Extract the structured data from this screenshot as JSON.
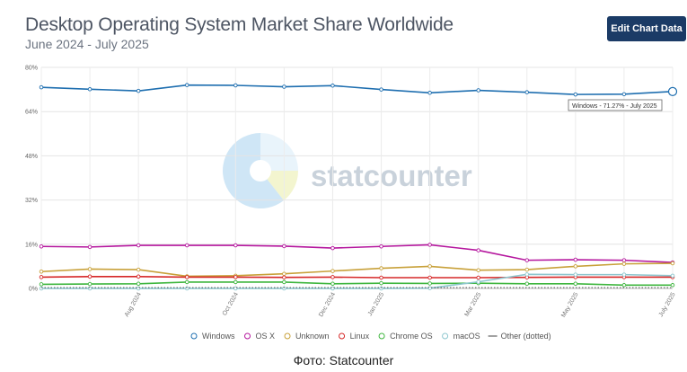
{
  "header": {
    "title": "Desktop Operating System Market Share Worldwide",
    "subtitle": "June 2024 - July 2025",
    "edit_button_label": "Edit Chart Data"
  },
  "watermark": {
    "text": "statcounter"
  },
  "tooltip": {
    "text": "Windows - 71.27% - July 2025"
  },
  "caption": "Фото: Statcounter",
  "chart_data": {
    "type": "line",
    "title": "Desktop Operating System Market Share Worldwide",
    "subtitle": "June 2024 - July 2025",
    "x": [
      "2024-06",
      "2024-07",
      "2024-08",
      "2024-09",
      "2024-10",
      "2024-11",
      "2024-12",
      "2025-01",
      "2025-02",
      "2025-03",
      "2025-04",
      "2025-05",
      "2025-06",
      "2025-07"
    ],
    "x_tick_labels": [
      {
        "label": "Aug 2024",
        "index": 2
      },
      {
        "label": "Oct 2024",
        "index": 4
      },
      {
        "label": "Dec 2024",
        "index": 6
      },
      {
        "label": "Jan 2025",
        "index": 7
      },
      {
        "label": "Mar 2025",
        "index": 9
      },
      {
        "label": "May 2025",
        "index": 11
      },
      {
        "label": "July 2025",
        "index": 13
      }
    ],
    "y_ticks": [
      "0%",
      "16%",
      "32%",
      "48%",
      "64%",
      "80%"
    ],
    "ylim": [
      0,
      80
    ],
    "grid": true,
    "legend_position": "bottom",
    "series": [
      {
        "name": "Windows",
        "color": "#1f6fb0",
        "values": [
          72.8,
          72.1,
          71.5,
          73.6,
          73.5,
          73.0,
          73.4,
          72.0,
          70.8,
          71.7,
          71.0,
          70.2,
          70.3,
          71.27
        ]
      },
      {
        "name": "OS X",
        "color": "#b5179e",
        "values": [
          15.2,
          15.0,
          15.6,
          15.6,
          15.6,
          15.3,
          14.6,
          15.2,
          15.8,
          13.8,
          10.2,
          10.4,
          10.2,
          9.4
        ]
      },
      {
        "name": "Unknown",
        "color": "#c8a13a",
        "values": [
          6.1,
          7.0,
          6.8,
          4.4,
          4.6,
          5.3,
          6.3,
          7.3,
          8.0,
          6.6,
          6.8,
          8.0,
          8.9,
          9.1
        ]
      },
      {
        "name": "Linux",
        "color": "#d62828",
        "values": [
          4.1,
          4.3,
          4.3,
          4.1,
          4.1,
          4.0,
          4.1,
          3.9,
          3.9,
          3.9,
          4.0,
          4.1,
          4.1,
          4.1
        ]
      },
      {
        "name": "Chrome OS",
        "color": "#3fb63f",
        "values": [
          1.5,
          1.6,
          1.7,
          2.3,
          2.3,
          2.3,
          1.7,
          1.9,
          1.8,
          1.9,
          1.7,
          1.7,
          1.2,
          1.2
        ]
      },
      {
        "name": "macOS",
        "color": "#8ec7cf",
        "values": [
          0.0,
          0.0,
          0.0,
          0.0,
          0.0,
          0.0,
          0.0,
          0.0,
          0.1,
          2.4,
          5.1,
          5.0,
          5.0,
          4.6
        ]
      },
      {
        "name": "Other (dotted)",
        "color": "#444444",
        "values": [
          0.3,
          0.3,
          0.3,
          0.3,
          0.3,
          0.3,
          0.3,
          0.3,
          0.3,
          0.3,
          0.3,
          0.3,
          0.3,
          0.3
        ]
      }
    ]
  }
}
